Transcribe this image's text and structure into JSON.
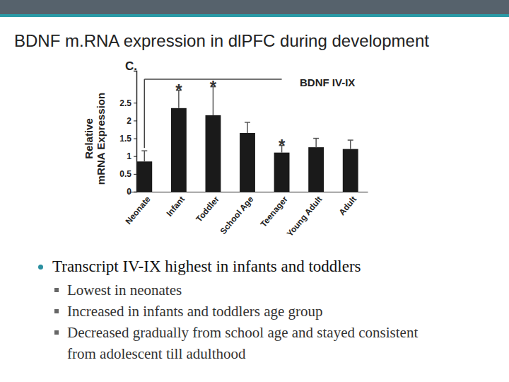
{
  "slide": {
    "title": "BDNF m.RNA expression in dlPFC during development",
    "bullets": [
      {
        "text": "Transcript IV-IX highest in infants and toddlers",
        "sub": [
          "Lowest in neonates",
          "Increased in infants and toddlers age group",
          "Decreased gradually from school age and stayed consistent from adolescent till adulthood"
        ]
      }
    ]
  },
  "chart_data": {
    "type": "bar",
    "title": "BDNF IV-IX",
    "panel_label": "C.",
    "y_label": "Relative mRNA Expression",
    "categories": [
      "Neonate",
      "Infant",
      "Toddler",
      "School Age",
      "Teenager",
      "Young Adult",
      "Adult"
    ],
    "values": [
      0.85,
      2.35,
      2.15,
      1.65,
      1.1,
      1.25,
      1.2
    ],
    "errors": [
      0.3,
      0.5,
      0.8,
      0.3,
      0.2,
      0.25,
      0.25
    ],
    "color": "#1a1a1a",
    "ylim": [
      0,
      3.4
    ],
    "yticks": [
      0,
      0.5,
      1,
      1.5,
      2,
      2.5
    ],
    "annotations": [
      {
        "category": "Infant",
        "text": "*"
      },
      {
        "category": "Toddler",
        "text": "*"
      },
      {
        "category": "Teenager",
        "text": "*"
      }
    ]
  }
}
